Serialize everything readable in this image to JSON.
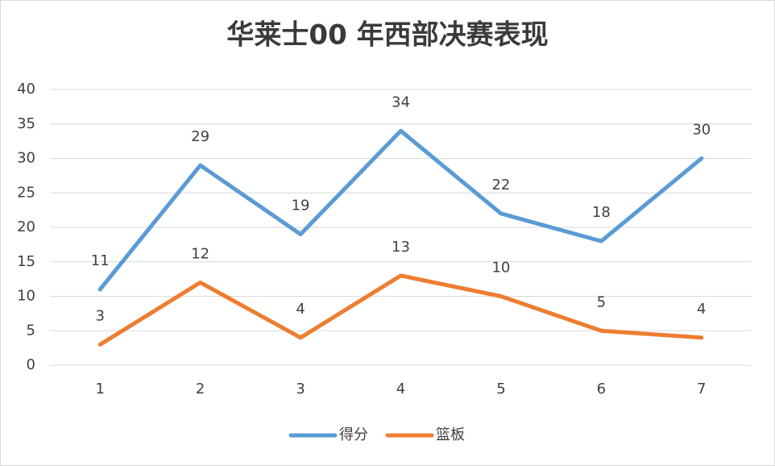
{
  "chart_data": {
    "type": "line",
    "title": "华莱士00 年西部决赛表现",
    "categories": [
      "1",
      "2",
      "3",
      "4",
      "5",
      "6",
      "7"
    ],
    "series": [
      {
        "name": "得分",
        "color": "#5b9bd5",
        "values": [
          11,
          29,
          19,
          34,
          22,
          18,
          30
        ]
      },
      {
        "name": "篮板",
        "color": "#ed7d31",
        "values": [
          3,
          12,
          4,
          13,
          10,
          5,
          4
        ]
      }
    ],
    "ylim": [
      0,
      40
    ],
    "yticks": [
      0,
      5,
      10,
      15,
      20,
      25,
      30,
      35,
      40
    ],
    "grid": true,
    "legend": "bottom"
  }
}
